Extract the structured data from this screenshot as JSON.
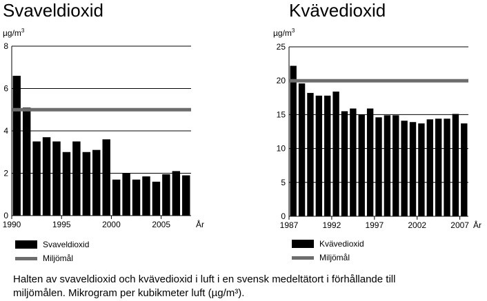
{
  "chart_data": [
    {
      "type": "bar",
      "title": "Svaveldioxid",
      "unit_label": "µg/m",
      "unit_sup": "3",
      "xlabel": "År",
      "categories": [
        "1990",
        "1991",
        "1992",
        "1993",
        "1994",
        "1995",
        "1996",
        "1997",
        "1998",
        "1999",
        "2000",
        "2001",
        "2002",
        "2003",
        "2004",
        "2005",
        "2006",
        "2007"
      ],
      "values": [
        6.6,
        5.1,
        3.5,
        3.7,
        3.5,
        3.0,
        3.5,
        3.0,
        3.1,
        3.6,
        1.7,
        2.0,
        1.7,
        1.85,
        1.6,
        1.95,
        2.1,
        1.9
      ],
      "ylim": [
        0,
        8
      ],
      "yticks": [
        "0",
        "2",
        "4",
        "6",
        "8"
      ],
      "xtick_labels": [
        "1990",
        "1995",
        "2000",
        "2005"
      ],
      "xtick_years": [
        1990,
        1995,
        2000,
        2005
      ],
      "reference_line": {
        "name": "Miljömål",
        "value": 5
      },
      "legend": {
        "bars": "Svaveldioxid",
        "line": "Miljömål"
      },
      "colors": {
        "bar": "#000000",
        "line": "#6d6d6d",
        "grid": "#000000"
      },
      "grid": true
    },
    {
      "type": "bar",
      "title": "Kvävedioxid",
      "unit_label": "µg/m",
      "unit_sup": "3",
      "xlabel": "År",
      "categories": [
        "1987",
        "1988",
        "1989",
        "1990",
        "1991",
        "1992",
        "1993",
        "1994",
        "1995",
        "1996",
        "1997",
        "1998",
        "1999",
        "2000",
        "2001",
        "2002",
        "2003",
        "2004",
        "2005",
        "2006",
        "2007"
      ],
      "values": [
        22.2,
        19.6,
        18.2,
        17.8,
        17.8,
        18.4,
        15.5,
        15.9,
        15.0,
        15.9,
        14.6,
        14.9,
        14.9,
        14.1,
        13.9,
        13.7,
        14.3,
        14.4,
        14.4,
        15.1,
        13.7
      ],
      "ylim": [
        0,
        25
      ],
      "yticks": [
        "0",
        "5",
        "10",
        "15",
        "20",
        "25"
      ],
      "xtick_labels": [
        "1987",
        "1992",
        "1997",
        "2002",
        "2007"
      ],
      "xtick_years": [
        1987,
        1992,
        1997,
        2002,
        2007
      ],
      "reference_line": {
        "name": "Miljömål",
        "value": 20
      },
      "legend": {
        "bars": "Kvävedioxid",
        "line": "Miljömål"
      },
      "colors": {
        "bar": "#000000",
        "line": "#6d6d6d",
        "grid": "#000000"
      },
      "grid": true
    }
  ],
  "caption": {
    "line1": "Halten av svaveldioxid och kvävedioxid i luft i en svensk medeltätort i förhållande till",
    "line2": "miljömålen. Mikrogram per kubikmeter luft (µg/m³)."
  }
}
